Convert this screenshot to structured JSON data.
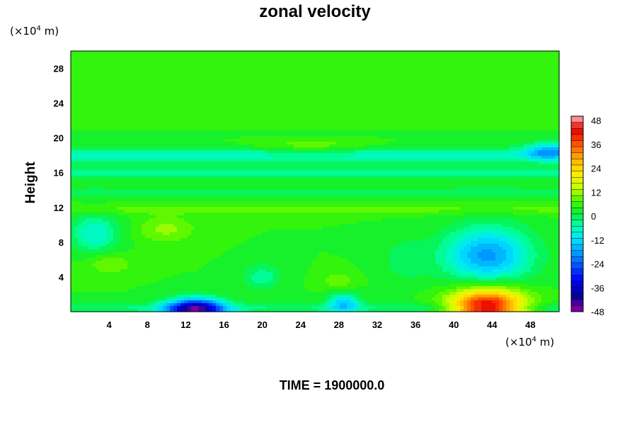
{
  "chart_data": {
    "type": "heatmap",
    "title": "zonal velocity",
    "ylabel": "Height",
    "xlabel": "",
    "x_unit": {
      "prefix": "(×10",
      "exp": "4",
      "suffix": " m)"
    },
    "y_unit": {
      "prefix": "(×10",
      "exp": "4",
      "suffix": " m)"
    },
    "xlim": [
      0,
      51
    ],
    "ylim": [
      0,
      30
    ],
    "x_ticks": [
      4,
      8,
      12,
      16,
      20,
      24,
      28,
      32,
      36,
      40,
      44,
      48
    ],
    "y_ticks": [
      4,
      8,
      12,
      16,
      20,
      24,
      28
    ],
    "colorbar": {
      "range": [
        -48,
        48
      ],
      "ticks": [
        48,
        36,
        24,
        12,
        0,
        -12,
        -24,
        -36,
        -48
      ],
      "levels": 32
    },
    "background_value": 3,
    "features": [
      {
        "x": 13,
        "y": 0.3,
        "value": -44,
        "sx": 3.0,
        "sy": 1.2
      },
      {
        "x": 43.5,
        "y": 0.4,
        "value": 44,
        "sx": 3.8,
        "sy": 2.2
      },
      {
        "x": 43.5,
        "y": 6.5,
        "value": -22,
        "sx": 4.5,
        "sy": 3.2
      },
      {
        "x": 2.5,
        "y": 9.0,
        "value": -12,
        "sx": 2.5,
        "sy": 2.2
      },
      {
        "x": 28.5,
        "y": 1.0,
        "value": -16,
        "sx": 1.6,
        "sy": 1.2
      },
      {
        "x": 10,
        "y": 9.5,
        "value": 7,
        "sx": 3.0,
        "sy": 1.5
      },
      {
        "x": 4,
        "y": 5.5,
        "value": 6,
        "sx": 2.5,
        "sy": 1.2
      },
      {
        "x": 28,
        "y": 3.5,
        "value": 6,
        "sx": 1.6,
        "sy": 1.0
      },
      {
        "x": 20,
        "y": 4.0,
        "value": -8,
        "sx": 2.0,
        "sy": 1.5
      },
      {
        "x": 35,
        "y": 6.0,
        "value": -5,
        "sx": 2.5,
        "sy": 2.5
      },
      {
        "x": 25,
        "y": 19.0,
        "value": 6,
        "sx": 6.0,
        "sy": 0.8
      },
      {
        "x": 50,
        "y": 18.5,
        "value": -16,
        "sx": 2.5,
        "sy": 1.0
      }
    ],
    "bands": [
      {
        "y": 20.5,
        "value": -1,
        "sy": 0.35
      },
      {
        "y": 18.0,
        "value": -10,
        "sy": 0.9
      },
      {
        "y": 16.0,
        "value": -8,
        "sy": 0.6
      },
      {
        "y": 13.8,
        "value": -4,
        "sy": 0.7
      },
      {
        "y": 11.8,
        "value": 4,
        "sy": 0.6
      },
      {
        "y": 0.4,
        "value": -6,
        "sy": 0.6
      }
    ],
    "time_label": "TIME = 1900000.0"
  }
}
